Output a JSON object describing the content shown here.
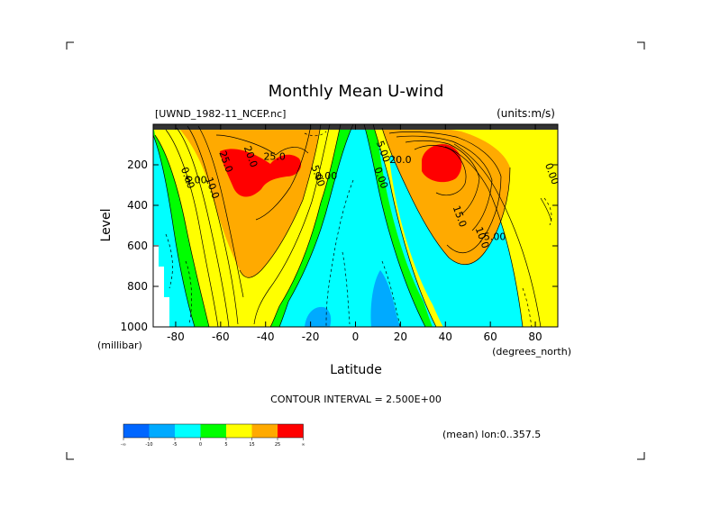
{
  "chart_data": {
    "type": "contour",
    "title": "Monthly Mean U-wind",
    "dataset_label": "[UWND_1982-11_NCEP.nc]",
    "units_label": "(units:m/s)",
    "xlabel": "Latitude",
    "xunits": "(degrees_north)",
    "ylabel": "Level",
    "yunits": "(millibar)",
    "x_ticks": [
      "-80",
      "-60",
      "-40",
      "-20",
      "0",
      "20",
      "40",
      "60",
      "80"
    ],
    "y_ticks": [
      "200",
      "400",
      "600",
      "800",
      "1000"
    ],
    "xlim": [
      -90,
      90
    ],
    "ylim": [
      1000,
      0
    ],
    "contour_interval_text": "CONTOUR INTERVAL = 2.500E+00",
    "mean_text": "(mean) lon:0..357.5",
    "contour_labels": [
      {
        "text": "20.0",
        "lat": -48,
        "lev": 165
      },
      {
        "text": "25.0",
        "lat": -36,
        "lev": 175
      },
      {
        "text": "25.0",
        "lat": -59,
        "lev": 190
      },
      {
        "text": "10.0",
        "lat": -65,
        "lev": 320
      },
      {
        "text": "5.00",
        "lat": -71,
        "lev": 290
      },
      {
        "text": "0.00",
        "lat": -76,
        "lev": 270
      },
      {
        "text": "5.00",
        "lat": -18,
        "lev": 260
      },
      {
        "text": "0.00",
        "lat": -13,
        "lev": 270
      },
      {
        "text": "5.00",
        "lat": 11,
        "lev": 140
      },
      {
        "text": "0.00",
        "lat": 10,
        "lev": 270
      },
      {
        "text": "20.0",
        "lat": 20,
        "lev": 190
      },
      {
        "text": "15.0",
        "lat": 45,
        "lev": 460
      },
      {
        "text": "10.0",
        "lat": 55,
        "lev": 565
      },
      {
        "text": "5.00",
        "lat": 62,
        "lev": 570
      },
      {
        "text": "0.00",
        "lat": 86,
        "lev": 250
      }
    ],
    "colorbar": {
      "colors": [
        "#0066ff",
        "#00aaff",
        "#00ffff",
        "#00ff00",
        "#ffff00",
        "#ffaa00",
        "#ff0000"
      ],
      "tick_labels": [
        "-∞",
        "-10",
        "-5",
        "0",
        "5",
        "15",
        "25",
        "∞"
      ]
    }
  }
}
